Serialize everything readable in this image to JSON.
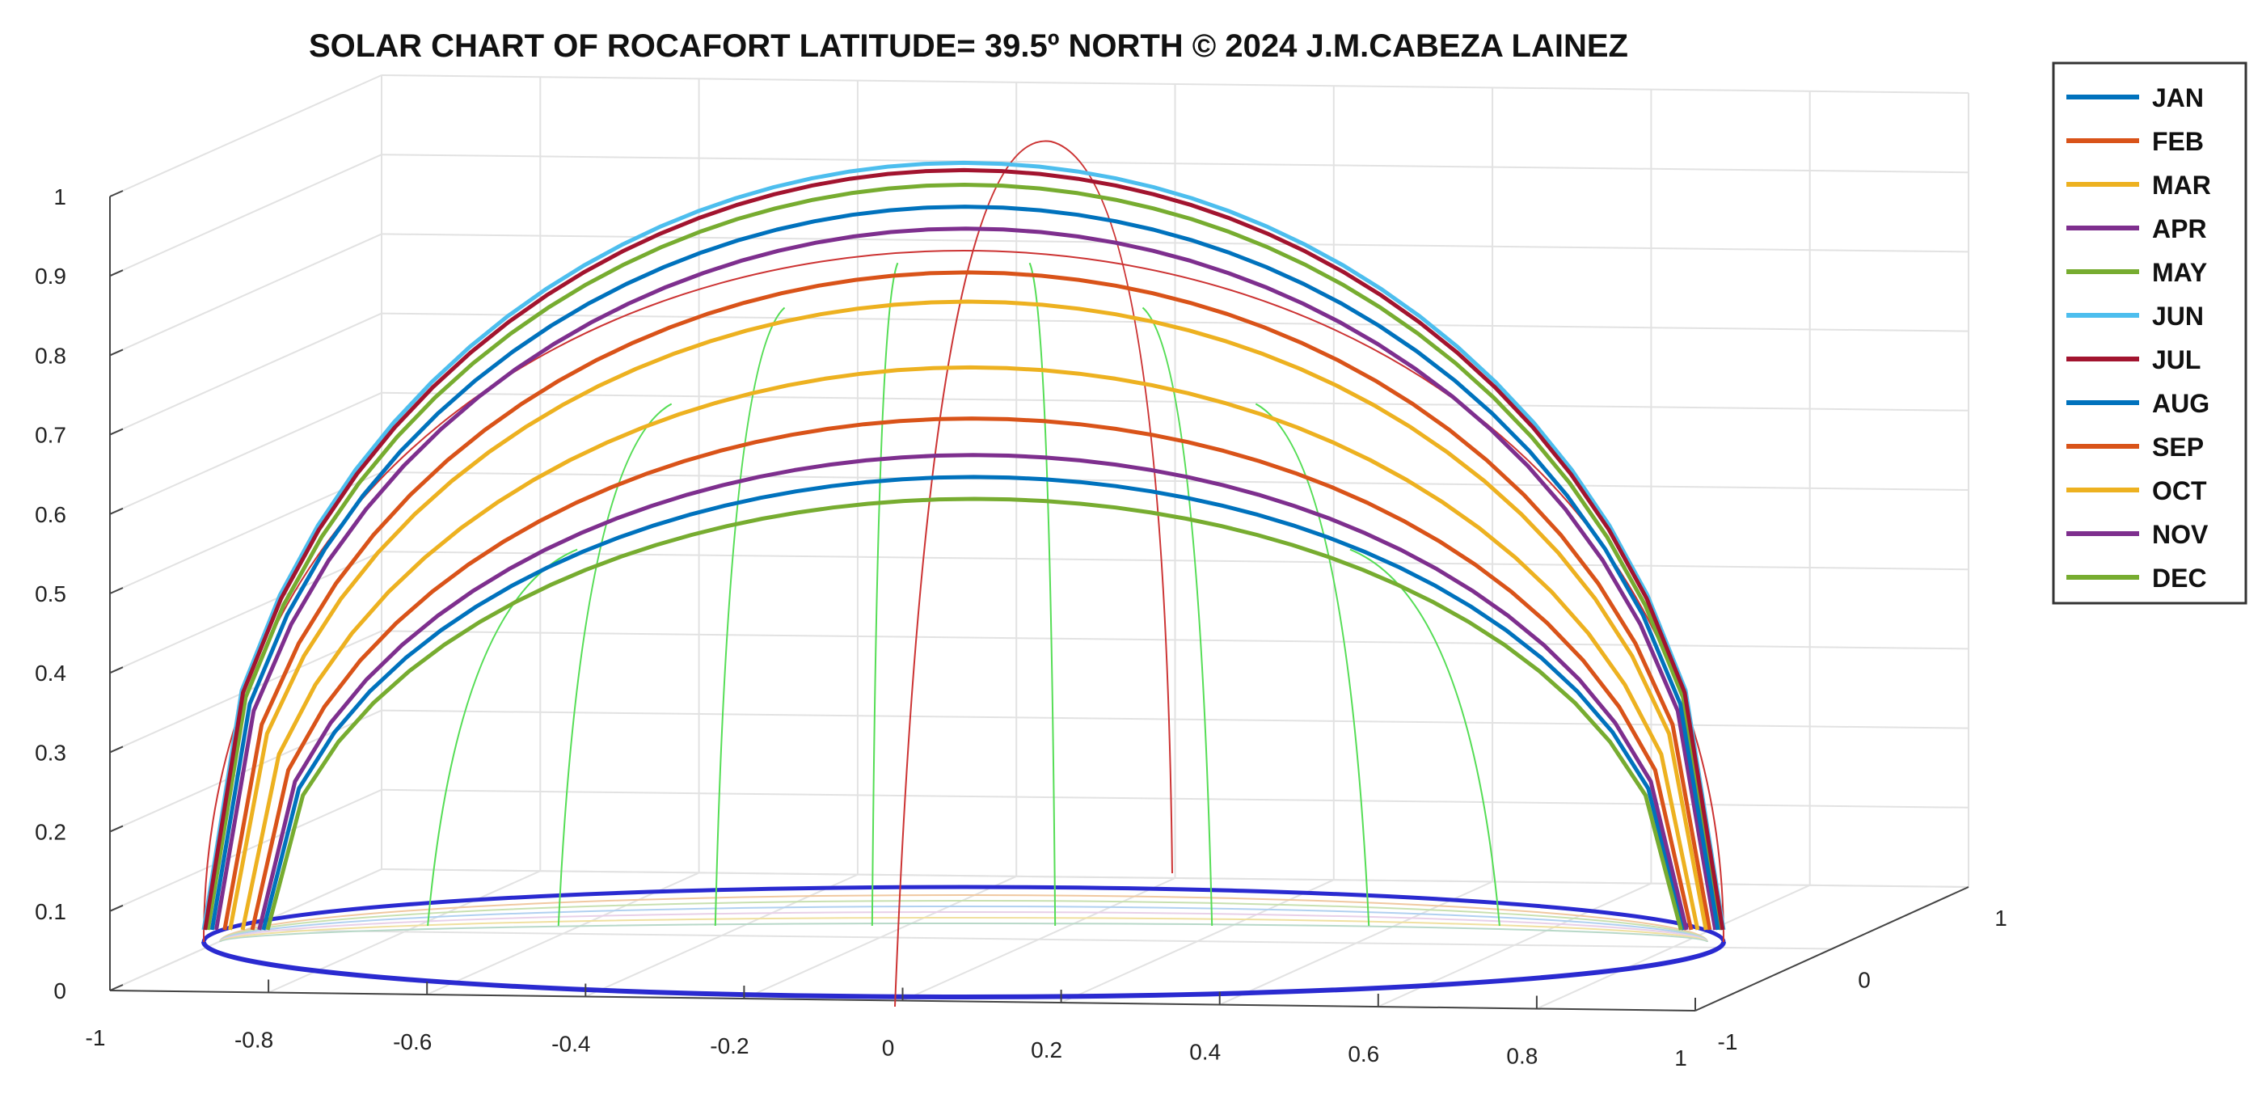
{
  "chart_data": {
    "type": "line",
    "title": "SOLAR CHART OF ROCAFORT LATITUDE= 39.5º NORTH  © 2024 J.M.CABEZA LAINEZ",
    "x_ticks": [
      "-1",
      "-0.8",
      "-0.6",
      "-0.4",
      "-0.2",
      "0",
      "0.2",
      "0.4",
      "0.6",
      "0.8",
      "1"
    ],
    "y_ticks": [
      "-1",
      "0",
      "1"
    ],
    "z_ticks": [
      "0",
      "0.1",
      "0.2",
      "0.3",
      "0.4",
      "0.5",
      "0.6",
      "0.7",
      "0.8",
      "0.9",
      "1"
    ],
    "xlim": [
      -1,
      1
    ],
    "ylim": [
      -1,
      1
    ],
    "zlim": [
      0,
      1
    ],
    "grid": true,
    "legend_position": "right",
    "series": [
      {
        "name": "JAN",
        "color": "#0072BD",
        "peak": 0.62
      },
      {
        "name": "FEB",
        "color": "#D95319",
        "peak": 0.7
      },
      {
        "name": "MAR",
        "color": "#EDB120",
        "peak": 0.77
      },
      {
        "name": "APR",
        "color": "#7E2F8E",
        "peak": 0.96
      },
      {
        "name": "MAY",
        "color": "#77AC30",
        "peak": 1.02
      },
      {
        "name": "JUN",
        "color": "#4DBEEE",
        "peak": 1.05
      },
      {
        "name": "JUL",
        "color": "#A2142F",
        "peak": 1.04
      },
      {
        "name": "AUG",
        "color": "#0072BD",
        "peak": 0.99
      },
      {
        "name": "SEP",
        "color": "#D95319",
        "peak": 0.9
      },
      {
        "name": "OCT",
        "color": "#EDB120",
        "peak": 0.86
      },
      {
        "name": "NOV",
        "color": "#7E2F8E",
        "peak": 0.65
      },
      {
        "name": "DEC",
        "color": "#77AC30",
        "peak": 0.59
      }
    ]
  }
}
